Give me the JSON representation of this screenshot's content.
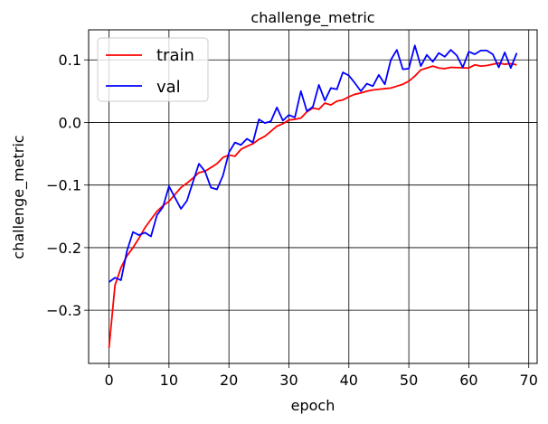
{
  "chart_data": {
    "type": "line",
    "title": "challenge_metric",
    "xlabel": "epoch",
    "ylabel": "challenge_metric",
    "xlim": [
      -3.4,
      71.4
    ],
    "ylim": [
      -0.385,
      0.148
    ],
    "xticks": [
      0,
      10,
      20,
      30,
      40,
      50,
      60,
      70
    ],
    "yticks": [
      -0.3,
      -0.2,
      -0.1,
      0.0,
      0.1
    ],
    "xtick_labels": [
      "0",
      "10",
      "20",
      "30",
      "40",
      "50",
      "60",
      "70"
    ],
    "ytick_labels": [
      "−0.3",
      "−0.2",
      "−0.1",
      "0.0",
      "0.1"
    ],
    "grid": true,
    "legend_position": "top-left",
    "series": [
      {
        "name": "train",
        "color": "#ff0000",
        "x": [
          0,
          1,
          2,
          3,
          4,
          5,
          6,
          7,
          8,
          9,
          10,
          11,
          12,
          13,
          14,
          15,
          16,
          17,
          18,
          19,
          20,
          21,
          22,
          23,
          24,
          25,
          26,
          27,
          28,
          29,
          30,
          31,
          32,
          33,
          34,
          35,
          36,
          37,
          38,
          39,
          40,
          41,
          42,
          43,
          44,
          45,
          46,
          47,
          48,
          49,
          50,
          51,
          52,
          53,
          54,
          55,
          56,
          57,
          60,
          61,
          62,
          63,
          64,
          65,
          66,
          67,
          68
        ],
        "y": [
          -0.36,
          -0.26,
          -0.232,
          -0.213,
          -0.2,
          -0.185,
          -0.168,
          -0.155,
          -0.142,
          -0.133,
          -0.126,
          -0.115,
          -0.104,
          -0.097,
          -0.089,
          -0.08,
          -0.078,
          -0.072,
          -0.066,
          -0.056,
          -0.052,
          -0.054,
          -0.043,
          -0.038,
          -0.034,
          -0.027,
          -0.022,
          -0.014,
          -0.006,
          -0.002,
          0.004,
          0.005,
          0.007,
          0.017,
          0.023,
          0.021,
          0.031,
          0.028,
          0.034,
          0.036,
          0.041,
          0.045,
          0.047,
          0.05,
          0.052,
          0.053,
          0.054,
          0.055,
          0.058,
          0.061,
          0.066,
          0.074,
          0.084,
          0.087,
          0.09,
          0.087,
          0.086,
          0.088,
          0.087,
          0.092,
          0.09,
          0.091,
          0.093,
          0.095,
          0.093,
          0.094,
          0.092
        ]
      },
      {
        "name": "val",
        "color": "#0000ff",
        "x": [
          0,
          1,
          2,
          3,
          4,
          5,
          6,
          7,
          8,
          9,
          10,
          11,
          12,
          13,
          14,
          15,
          16,
          17,
          18,
          19,
          20,
          21,
          22,
          23,
          24,
          25,
          26,
          27,
          28,
          29,
          30,
          31,
          32,
          33,
          34,
          35,
          36,
          37,
          38,
          39,
          40,
          41,
          42,
          43,
          44,
          45,
          46,
          47,
          48,
          49,
          50,
          51,
          52,
          53,
          54,
          55,
          56,
          57,
          58,
          59,
          60,
          61,
          62,
          63,
          64,
          65,
          66,
          67,
          68
        ],
        "y": [
          -0.255,
          -0.248,
          -0.252,
          -0.205,
          -0.175,
          -0.18,
          -0.176,
          -0.182,
          -0.148,
          -0.135,
          -0.102,
          -0.12,
          -0.138,
          -0.125,
          -0.095,
          -0.066,
          -0.078,
          -0.104,
          -0.107,
          -0.085,
          -0.048,
          -0.032,
          -0.036,
          -0.026,
          -0.032,
          0.005,
          -0.001,
          0.002,
          0.024,
          0.003,
          0.012,
          0.008,
          0.05,
          0.018,
          0.025,
          0.06,
          0.035,
          0.055,
          0.053,
          0.08,
          0.075,
          0.063,
          0.05,
          0.062,
          0.058,
          0.076,
          0.061,
          0.1,
          0.116,
          0.085,
          0.086,
          0.123,
          0.09,
          0.108,
          0.097,
          0.111,
          0.105,
          0.116,
          0.107,
          0.088,
          0.113,
          0.109,
          0.115,
          0.115,
          0.109,
          0.088,
          0.112,
          0.087,
          0.111
        ]
      }
    ]
  }
}
